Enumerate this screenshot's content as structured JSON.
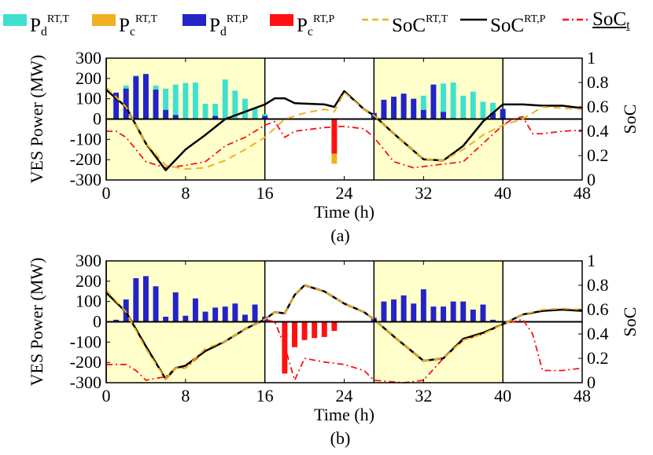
{
  "legend": [
    {
      "base": "P",
      "sub": "d",
      "sup": "RT,T",
      "color": "#40e0d0",
      "kind": "bar"
    },
    {
      "base": "P",
      "sub": "c",
      "sup": "RT,T",
      "color": "#f0b020",
      "kind": "bar"
    },
    {
      "base": "P",
      "sub": "d",
      "sup": "RT,P",
      "color": "#2323c8",
      "kind": "bar"
    },
    {
      "base": "P",
      "sub": "c",
      "sup": "RT,P",
      "color": "#ff1010",
      "kind": "bar"
    },
    {
      "base": "SoC",
      "sub": "",
      "sup": "RT,T",
      "color": "#f0b020",
      "kind": "dash"
    },
    {
      "base": "SoC",
      "sub": "",
      "sup": "RT,P",
      "color": "#000000",
      "kind": "solid"
    },
    {
      "base": "SoC",
      "sub": "t",
      "sup": "",
      "color": "#ff1010",
      "kind": "dashdot",
      "underline": true
    }
  ],
  "colors": {
    "pd_t": "#40e0d0",
    "pc_t": "#f0b020",
    "pd_p": "#2323c8",
    "pc_p": "#ff1010",
    "soc_t": "#f0b020",
    "soc_p": "#000000",
    "soc_min": "#ff1010",
    "shade": "#ffffcc"
  },
  "chart_data": [
    {
      "type": "bar",
      "caption": "(a)",
      "xlabel": "Time (h)",
      "ylabel": "VES Power (MW)",
      "y2label": "SoC",
      "xlim": [
        0,
        48
      ],
      "ylim": [
        -300,
        300
      ],
      "y2lim": [
        0,
        1
      ],
      "xticks": [
        0,
        8,
        16,
        24,
        32,
        40,
        48
      ],
      "yticks": [
        -300,
        -200,
        -100,
        0,
        100,
        200,
        300
      ],
      "y2ticks": [
        0,
        0.2,
        0.4,
        0.6,
        0.8,
        1
      ],
      "shaded": [
        [
          0,
          16
        ],
        [
          27,
          40
        ]
      ],
      "bars": {
        "pd_t": [
          [
            1,
            10
          ],
          [
            2,
            165
          ],
          [
            3,
            215
          ],
          [
            4,
            185
          ],
          [
            5,
            165
          ],
          [
            6,
            150
          ],
          [
            7,
            170
          ],
          [
            8,
            178
          ],
          [
            9,
            180
          ],
          [
            10,
            75
          ],
          [
            11,
            75
          ],
          [
            12,
            195
          ],
          [
            13,
            140
          ],
          [
            14,
            100
          ],
          [
            15,
            55
          ],
          [
            16,
            25
          ],
          [
            27,
            30
          ],
          [
            28,
            95
          ],
          [
            29,
            110
          ],
          [
            30,
            125
          ],
          [
            31,
            100
          ],
          [
            32,
            115
          ],
          [
            33,
            165
          ],
          [
            34,
            175
          ],
          [
            35,
            180
          ],
          [
            36,
            115
          ],
          [
            37,
            135
          ],
          [
            38,
            85
          ],
          [
            39,
            80
          ],
          [
            40,
            40
          ]
        ],
        "pd_p": [
          [
            1,
            130
          ],
          [
            2,
            150
          ],
          [
            3,
            210
          ],
          [
            4,
            222
          ],
          [
            5,
            145
          ],
          [
            6,
            45
          ],
          [
            7,
            20
          ],
          [
            11,
            15
          ],
          [
            16,
            15
          ],
          [
            27,
            30
          ],
          [
            28,
            95
          ],
          [
            29,
            110
          ],
          [
            30,
            125
          ],
          [
            31,
            100
          ],
          [
            32,
            45
          ],
          [
            33,
            170
          ],
          [
            34,
            35
          ],
          [
            35,
            5
          ],
          [
            36,
            5
          ],
          [
            39,
            30
          ],
          [
            40,
            50
          ]
        ],
        "pc_t": [
          [
            23,
            -220
          ]
        ],
        "pc_p": [
          [
            23,
            -170
          ]
        ]
      },
      "soc_t": [
        [
          0,
          0.76
        ],
        [
          2,
          0.6
        ],
        [
          4,
          0.3
        ],
        [
          6,
          0.12
        ],
        [
          8,
          0.09
        ],
        [
          10,
          0.1
        ],
        [
          12,
          0.16
        ],
        [
          14,
          0.25
        ],
        [
          16,
          0.35
        ],
        [
          18,
          0.5
        ],
        [
          20,
          0.55
        ],
        [
          22,
          0.58
        ],
        [
          23,
          0.56
        ],
        [
          24,
          0.72
        ],
        [
          26,
          0.58
        ],
        [
          27,
          0.53
        ],
        [
          29,
          0.38
        ],
        [
          32,
          0.17
        ],
        [
          34,
          0.16
        ],
        [
          36,
          0.25
        ],
        [
          38,
          0.37
        ],
        [
          40,
          0.45
        ],
        [
          42,
          0.5
        ],
        [
          44,
          0.6
        ],
        [
          46,
          0.59
        ],
        [
          48,
          0.58
        ]
      ],
      "soc_p": [
        [
          0,
          0.74
        ],
        [
          2,
          0.6
        ],
        [
          4,
          0.3
        ],
        [
          6,
          0.08
        ],
        [
          8,
          0.25
        ],
        [
          10,
          0.37
        ],
        [
          12,
          0.5
        ],
        [
          14,
          0.56
        ],
        [
          16,
          0.62
        ],
        [
          17,
          0.67
        ],
        [
          18,
          0.67
        ],
        [
          19,
          0.63
        ],
        [
          22,
          0.62
        ],
        [
          23,
          0.6
        ],
        [
          24,
          0.73
        ],
        [
          26,
          0.58
        ],
        [
          27,
          0.53
        ],
        [
          29,
          0.38
        ],
        [
          32,
          0.17
        ],
        [
          34,
          0.16
        ],
        [
          36,
          0.28
        ],
        [
          38,
          0.48
        ],
        [
          40,
          0.62
        ],
        [
          42,
          0.62
        ],
        [
          44,
          0.61
        ],
        [
          46,
          0.61
        ],
        [
          48,
          0.59
        ]
      ],
      "soc_min": [
        [
          0,
          0.4
        ],
        [
          1,
          0.4
        ],
        [
          2,
          0.35
        ],
        [
          4,
          0.15
        ],
        [
          6,
          0.1
        ],
        [
          8,
          0.12
        ],
        [
          10,
          0.15
        ],
        [
          12,
          0.28
        ],
        [
          14,
          0.35
        ],
        [
          16,
          0.45
        ],
        [
          17,
          0.48
        ],
        [
          18,
          0.35
        ],
        [
          19,
          0.4
        ],
        [
          22,
          0.43
        ],
        [
          24,
          0.44
        ],
        [
          26,
          0.42
        ],
        [
          27,
          0.35
        ],
        [
          29,
          0.15
        ],
        [
          31,
          0.1
        ],
        [
          34,
          0.13
        ],
        [
          36,
          0.15
        ],
        [
          38,
          0.3
        ],
        [
          40,
          0.45
        ],
        [
          41,
          0.5
        ],
        [
          42,
          0.52
        ],
        [
          43,
          0.38
        ],
        [
          44,
          0.38
        ],
        [
          46,
          0.4
        ],
        [
          48,
          0.41
        ]
      ]
    },
    {
      "type": "bar",
      "caption": "(b)",
      "xlabel": "Time (h)",
      "ylabel": "VES Power (MW)",
      "y2label": "SoC",
      "xlim": [
        0,
        48
      ],
      "ylim": [
        -300,
        300
      ],
      "y2lim": [
        0,
        1
      ],
      "xticks": [
        0,
        8,
        16,
        24,
        32,
        40,
        48
      ],
      "yticks": [
        -300,
        -200,
        -100,
        0,
        100,
        200,
        300
      ],
      "y2ticks": [
        0,
        0.2,
        0.4,
        0.6,
        0.8,
        1
      ],
      "shaded": [
        [
          0,
          16
        ],
        [
          27,
          40
        ]
      ],
      "bars": {
        "pd_t": [],
        "pd_p": [
          [
            1,
            10
          ],
          [
            2,
            110
          ],
          [
            3,
            215
          ],
          [
            4,
            225
          ],
          [
            5,
            175
          ],
          [
            6,
            25
          ],
          [
            7,
            145
          ],
          [
            8,
            30
          ],
          [
            9,
            115
          ],
          [
            10,
            50
          ],
          [
            11,
            70
          ],
          [
            12,
            75
          ],
          [
            13,
            90
          ],
          [
            14,
            35
          ],
          [
            15,
            85
          ],
          [
            16,
            25
          ],
          [
            27,
            20
          ],
          [
            28,
            100
          ],
          [
            29,
            110
          ],
          [
            30,
            130
          ],
          [
            31,
            90
          ],
          [
            32,
            160
          ],
          [
            33,
            75
          ],
          [
            34,
            75
          ],
          [
            35,
            100
          ],
          [
            36,
            100
          ],
          [
            37,
            60
          ],
          [
            38,
            85
          ],
          [
            39,
            10
          ]
        ],
        "pc_t": [],
        "pc_p": [
          [
            18,
            -255
          ],
          [
            19,
            -125
          ],
          [
            20,
            -90
          ],
          [
            21,
            -80
          ],
          [
            22,
            -75
          ],
          [
            23,
            -45
          ]
        ]
      },
      "soc_t": [
        [
          0,
          0.76
        ],
        [
          2,
          0.58
        ],
        [
          4,
          0.28
        ],
        [
          6,
          0.03
        ],
        [
          7,
          0.12
        ],
        [
          8,
          0.12
        ],
        [
          10,
          0.28
        ],
        [
          12,
          0.34
        ],
        [
          14,
          0.44
        ],
        [
          16,
          0.52
        ],
        [
          17,
          0.58
        ],
        [
          18,
          0.57
        ],
        [
          19,
          0.72
        ],
        [
          20,
          0.8
        ],
        [
          22,
          0.75
        ],
        [
          24,
          0.65
        ],
        [
          26,
          0.58
        ],
        [
          27,
          0.52
        ],
        [
          29,
          0.38
        ],
        [
          32,
          0.18
        ],
        [
          34,
          0.2
        ],
        [
          36,
          0.35
        ],
        [
          38,
          0.4
        ],
        [
          40,
          0.48
        ],
        [
          42,
          0.56
        ],
        [
          44,
          0.6
        ],
        [
          46,
          0.61
        ],
        [
          48,
          0.6
        ]
      ],
      "soc_p": [
        [
          0,
          0.74
        ],
        [
          2,
          0.58
        ],
        [
          4,
          0.3
        ],
        [
          6,
          0.03
        ],
        [
          7,
          0.12
        ],
        [
          8,
          0.14
        ],
        [
          10,
          0.26
        ],
        [
          12,
          0.34
        ],
        [
          14,
          0.44
        ],
        [
          16,
          0.52
        ],
        [
          17,
          0.58
        ],
        [
          18,
          0.57
        ],
        [
          19,
          0.72
        ],
        [
          20,
          0.8
        ],
        [
          22,
          0.75
        ],
        [
          24,
          0.65
        ],
        [
          26,
          0.58
        ],
        [
          27,
          0.52
        ],
        [
          29,
          0.38
        ],
        [
          32,
          0.18
        ],
        [
          34,
          0.2
        ],
        [
          36,
          0.36
        ],
        [
          38,
          0.41
        ],
        [
          40,
          0.48
        ],
        [
          42,
          0.56
        ],
        [
          44,
          0.59
        ],
        [
          46,
          0.6
        ],
        [
          48,
          0.59
        ]
      ],
      "soc_min": [
        [
          0,
          0.15
        ],
        [
          2,
          0.15
        ],
        [
          3,
          0.1
        ],
        [
          4,
          0.02
        ],
        [
          6,
          0.05
        ],
        [
          7,
          0.12
        ],
        [
          8,
          0.12
        ],
        [
          10,
          0.26
        ],
        [
          12,
          0.34
        ],
        [
          14,
          0.44
        ],
        [
          16,
          0.52
        ],
        [
          17,
          0.5
        ],
        [
          18,
          0.3
        ],
        [
          19,
          0.02
        ],
        [
          20,
          0.2
        ],
        [
          22,
          0.17
        ],
        [
          24,
          0.15
        ],
        [
          26,
          0.1
        ],
        [
          27,
          0.02
        ],
        [
          30,
          0.0
        ],
        [
          32,
          0.02
        ],
        [
          34,
          0.2
        ],
        [
          36,
          0.35
        ],
        [
          38,
          0.4
        ],
        [
          40,
          0.48
        ],
        [
          42,
          0.52
        ],
        [
          43,
          0.4
        ],
        [
          44,
          0.1
        ],
        [
          46,
          0.1
        ],
        [
          48,
          0.12
        ]
      ]
    }
  ]
}
